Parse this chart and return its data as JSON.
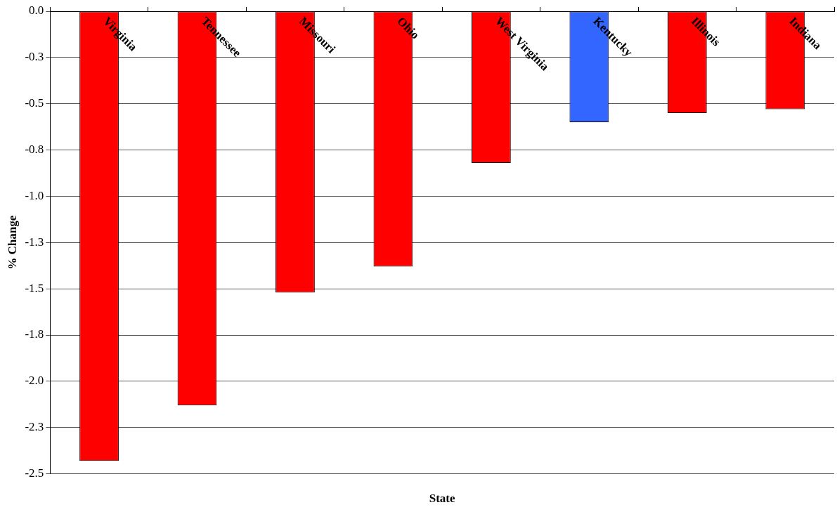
{
  "chart_data": {
    "type": "bar",
    "xlabel": "State",
    "ylabel": "% Change",
    "categories": [
      "Virginia",
      "Tennessee",
      "Missouri",
      "Ohio",
      "West Virginia",
      "Kentucky",
      "Illinois",
      "Indiana"
    ],
    "values": [
      -2.43,
      -2.13,
      -1.52,
      -1.38,
      -0.82,
      -0.6,
      -0.55,
      -0.53
    ],
    "colors": [
      "#ff0000",
      "#ff0000",
      "#ff0000",
      "#ff0000",
      "#ff0000",
      "#3366ff",
      "#ff0000",
      "#ff0000"
    ],
    "ylim": [
      -2.5,
      0
    ],
    "yticks": [
      {
        "value": 0,
        "label": "0.0"
      },
      {
        "value": -0.25,
        "label": "-0.3"
      },
      {
        "value": -0.5,
        "label": "-0.5"
      },
      {
        "value": -0.75,
        "label": "-0.8"
      },
      {
        "value": -1,
        "label": "-1.0"
      },
      {
        "value": -1.25,
        "label": "-1.3"
      },
      {
        "value": -1.5,
        "label": "-1.5"
      },
      {
        "value": -1.75,
        "label": "-1.8"
      },
      {
        "value": -2,
        "label": "-2.0"
      },
      {
        "value": -2.25,
        "label": "-2.3"
      },
      {
        "value": -2.5,
        "label": "-2.5"
      }
    ],
    "grid": "y"
  }
}
